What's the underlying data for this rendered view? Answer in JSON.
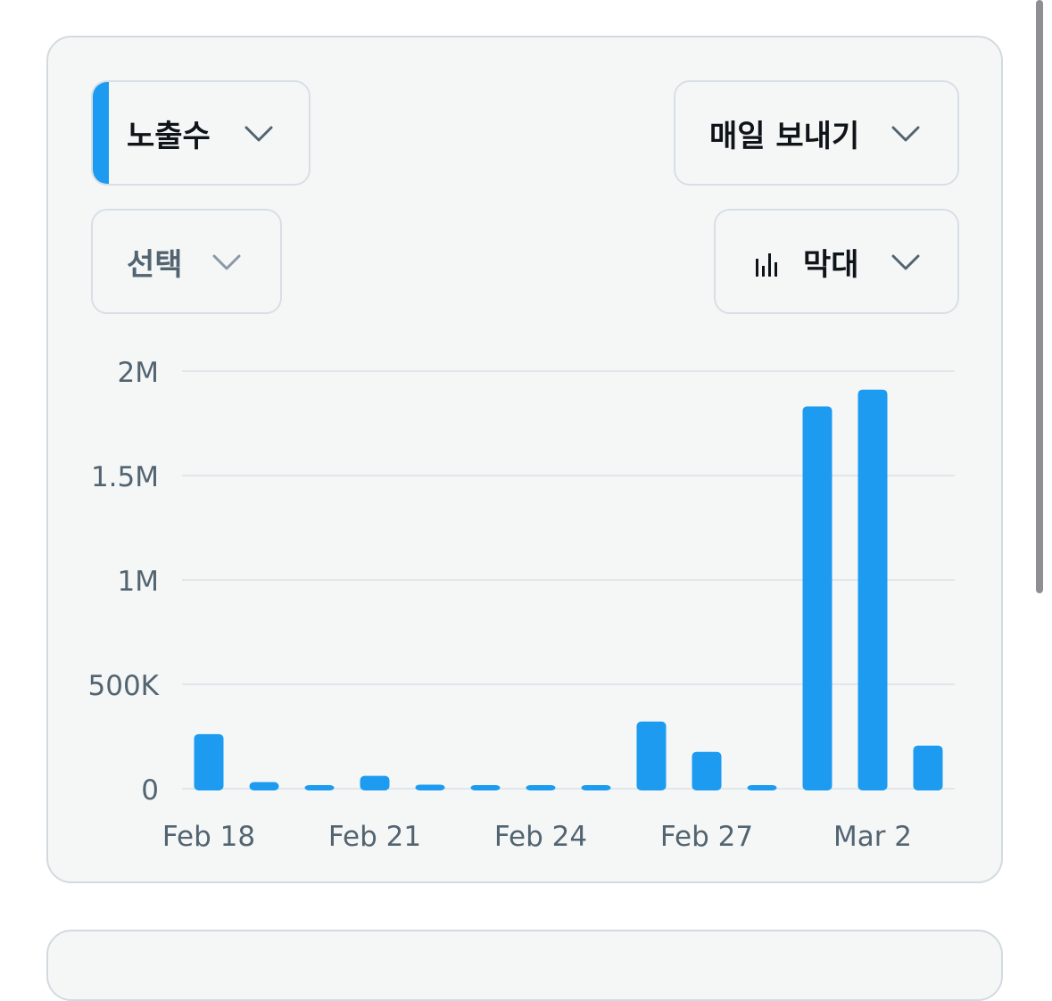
{
  "controls": {
    "metric_label": "노출수",
    "send_label": "매일 보내기",
    "select_label": "선택",
    "chart_type_label": "막대"
  },
  "icons": {
    "metric_chevron": "chevron-down-icon",
    "send_chevron": "chevron-down-icon",
    "select_chevron": "chevron-down-icon",
    "chart_type_icon": "bar-chart-icon",
    "chart_type_chevron": "chevron-down-icon"
  },
  "colors": {
    "accent": "#1d9bf0",
    "bar": "#1d9bf0",
    "gridline": "#e1e6ea",
    "axis_text": "#536471"
  },
  "chart_data": {
    "type": "bar",
    "x": [
      "Feb 18",
      "Feb 19",
      "Feb 20",
      "Feb 21",
      "Feb 22",
      "Feb 23",
      "Feb 24",
      "Feb 25",
      "Feb 26",
      "Feb 27",
      "Feb 28",
      "Mar 1",
      "Mar 2",
      "Mar 3"
    ],
    "series": [
      {
        "values": [
          270000,
          40000,
          15000,
          70000,
          28000,
          22000,
          25000,
          10000,
          330000,
          185000,
          25000,
          1840000,
          1920000,
          215000
        ]
      }
    ],
    "x_tick_labels": [
      "Feb 18",
      "Feb 21",
      "Feb 24",
      "Feb 27",
      "Mar 2"
    ],
    "y_ticks": [
      {
        "value": 0,
        "label": "0"
      },
      {
        "value": 500000,
        "label": "500K"
      },
      {
        "value": 1000000,
        "label": "1M"
      },
      {
        "value": 1500000,
        "label": "1.5M"
      },
      {
        "value": 2000000,
        "label": "2M"
      }
    ],
    "ylim": [
      0,
      2000000
    ],
    "grid": true,
    "legend": "none",
    "title": "",
    "xlabel": "",
    "ylabel": ""
  }
}
